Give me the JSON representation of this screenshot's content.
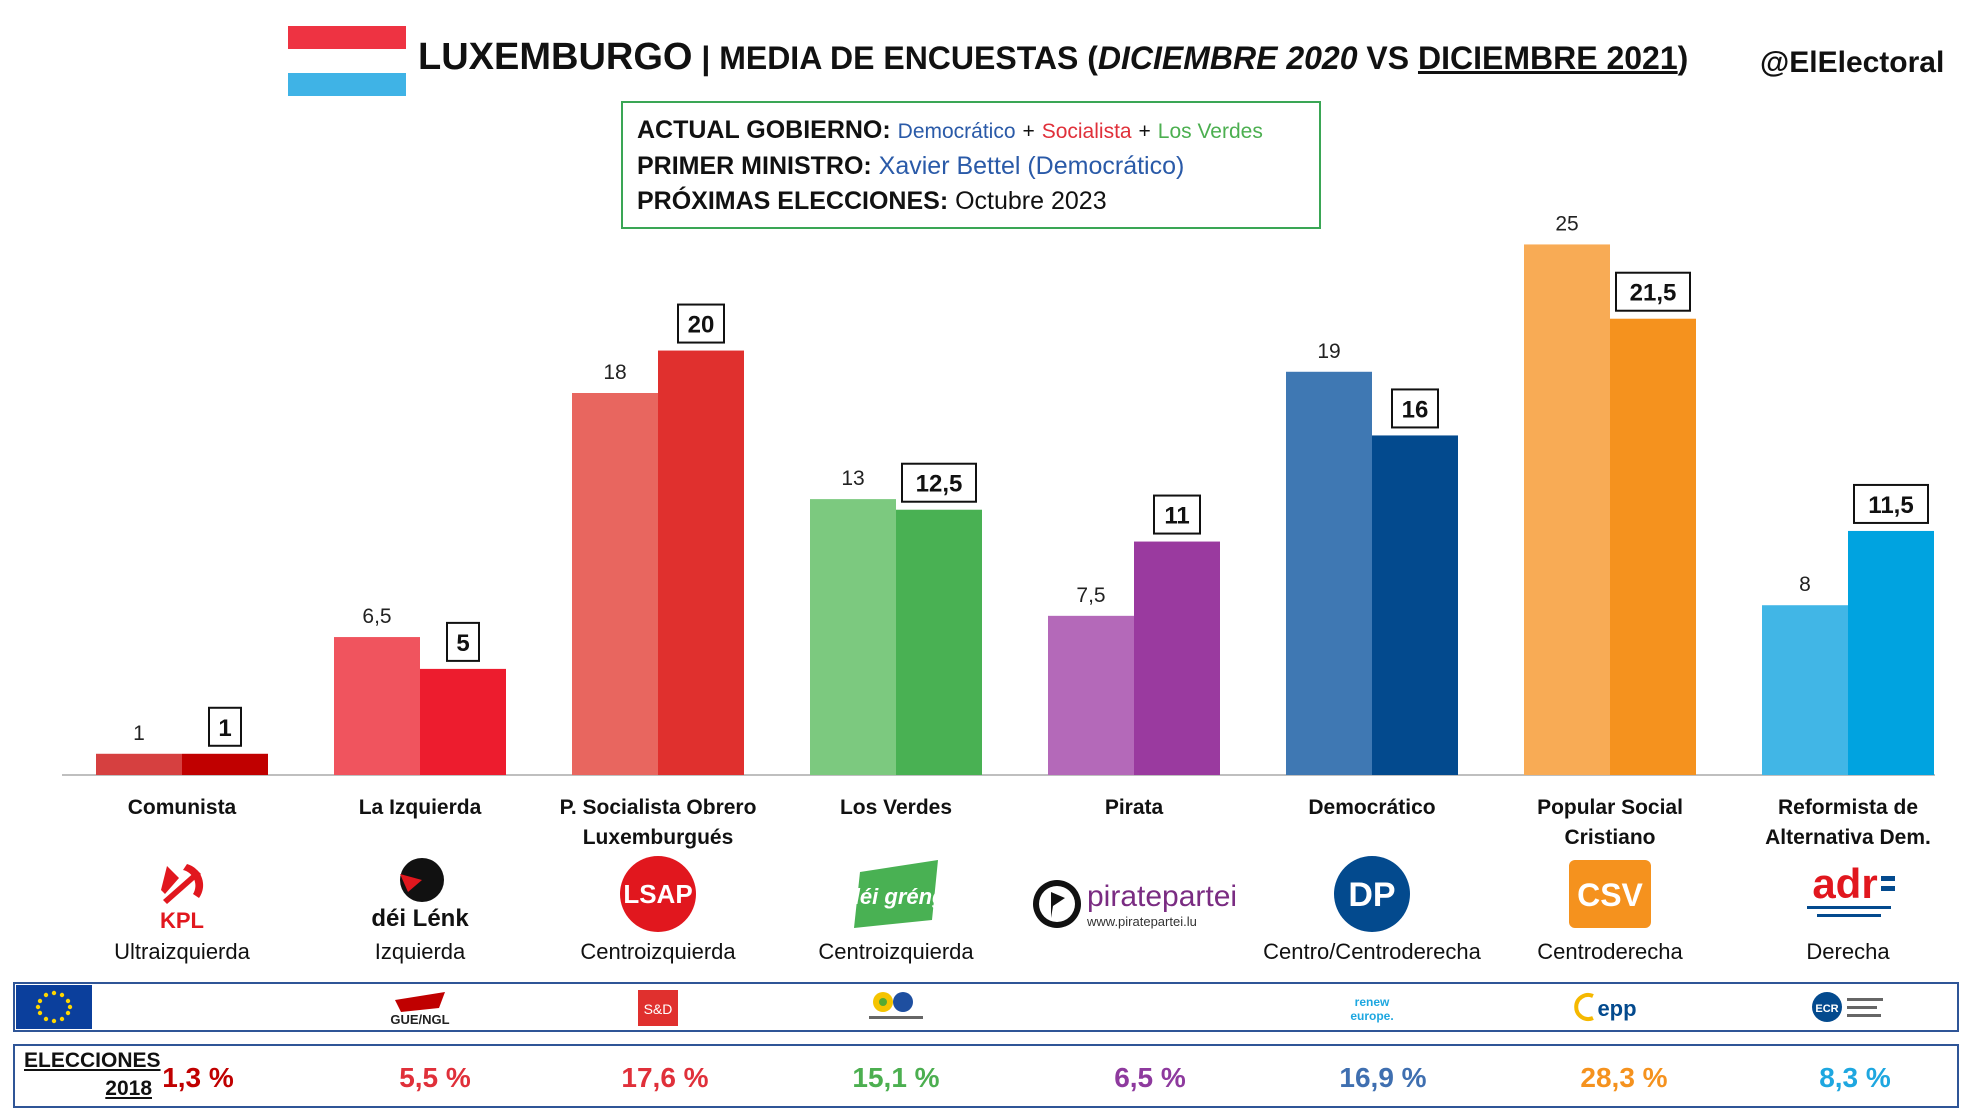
{
  "header": {
    "title_country": "LUXEMBURGO",
    "title_sep": " | MEDIA DE ENCUESTAS (",
    "title_date1": "DICIEMBRE 2020",
    "title_vs": " VS ",
    "title_date2": "DICIEMBRE 2021",
    "title_end": ")",
    "handle": "@ElElectoral",
    "flag_colors": [
      "#ee3342",
      "#ffffff",
      "#3fb3e6"
    ]
  },
  "info": {
    "gov_label": "ACTUAL GOBIERNO:",
    "gov_parties": [
      {
        "name": "Democrático",
        "color": "#2a5aa8"
      },
      {
        "name": "Socialista",
        "color": "#e0303a"
      },
      {
        "name": "Los Verdes",
        "color": "#4caf50"
      }
    ],
    "plus": "+",
    "pm_label": "PRIMER MINISTRO:",
    "pm_value": "Xavier Bettel (Democrático)",
    "pm_color": "#2a5aa8",
    "next_label": "PRÓXIMAS ELECCIONES:",
    "next_value": "Octubre 2023"
  },
  "chart_data": {
    "type": "bar",
    "categories": [
      "Comunista",
      "La Izquierda",
      "P. Socialista Obrero Luxemburgués",
      "Los Verdes",
      "Pirata",
      "Democrático",
      "Popular Social Cristiano",
      "Reformista de Alternativa Dem."
    ],
    "category_lines": [
      [
        "Comunista"
      ],
      [
        "La Izquierda"
      ],
      [
        "P. Socialista Obrero",
        "Luxemburgués"
      ],
      [
        "Los Verdes"
      ],
      [
        "Pirata"
      ],
      [
        "Democrático"
      ],
      [
        "Popular Social",
        "Cristiano"
      ],
      [
        "Reformista de",
        "Alternativa Dem."
      ]
    ],
    "series": [
      {
        "values": [
          1,
          6.5,
          18,
          13,
          7.5,
          19,
          25,
          8
        ],
        "labels": [
          "1",
          "6,5",
          "18",
          "13",
          "7,5",
          "19",
          "25",
          "8"
        ]
      },
      {
        "values": [
          1,
          5,
          20,
          12.5,
          11,
          16,
          21.5,
          11.5
        ],
        "labels": [
          "1",
          "5",
          "20",
          "12,5",
          "11",
          "16",
          "21,5",
          "11,5"
        ]
      }
    ],
    "colors_2020": [
      "#d64040",
      "#f0545e",
      "#e8665f",
      "#7cc97f",
      "#b469b9",
      "#3f78b3",
      "#f8ab55",
      "#41b6e6"
    ],
    "colors_2021": [
      "#c00000",
      "#ed1c2e",
      "#e0302e",
      "#49b153",
      "#9a3a9f",
      "#034a8e",
      "#f5921e",
      "#00a3e0"
    ],
    "ylim": [
      0,
      27
    ]
  },
  "parties": [
    {
      "logo": "KPL",
      "ideology": "Ultraizquierda"
    },
    {
      "logo": "déi Lénk",
      "ideology": "Izquierda"
    },
    {
      "logo": "LSAP",
      "ideology": "Centroizquierda"
    },
    {
      "logo": "déi gréng",
      "ideology": "Centroizquierda"
    },
    {
      "logo": "piratepartei",
      "logo_sub": "www.piratepartei.lu",
      "ideology": ""
    },
    {
      "logo": "DP",
      "ideology": "Centro/Centroderecha"
    },
    {
      "logo": "CSV",
      "ideology": "Centroderecha"
    },
    {
      "logo": "adr",
      "ideology": "Derecha"
    }
  ],
  "eu_groups": [
    "",
    "GUE/NGL",
    "S&D",
    "",
    "",
    "renew europe.",
    "epp",
    "ECR"
  ],
  "elections": {
    "label_line1": "ELECCIONES",
    "label_line2": "2018",
    "results": [
      "1,3 %",
      "5,5 %",
      "17,6 %",
      "15,1 %",
      "6,5 %",
      "16,9 %",
      "28,3 %",
      "8,3 %"
    ],
    "colors": [
      "#c00000",
      "#e0303a",
      "#e0303a",
      "#4caf50",
      "#8e3a9e",
      "#3f6fb0",
      "#f5921e",
      "#1ea7e0"
    ]
  }
}
